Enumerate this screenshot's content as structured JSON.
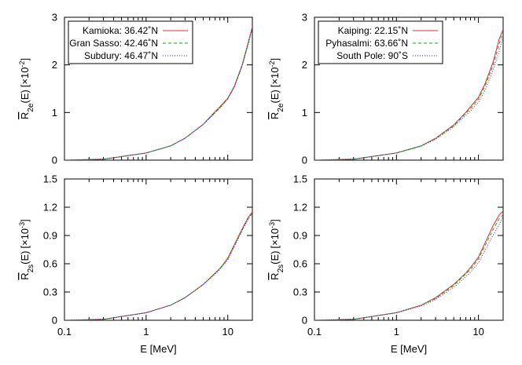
{
  "chart_data": [
    {
      "type": "line",
      "panel": "top-left",
      "ylabel": {
        "base": "R",
        "sub": "2e",
        "arg": "(E)",
        "scale": "[×10",
        "exp": "-2",
        "close": "]"
      },
      "xlabel": "",
      "xscale": "log",
      "xlim": [
        0.1,
        20
      ],
      "ylim": [
        0,
        3
      ],
      "xtick_values": [
        0.1,
        1,
        10
      ],
      "xtick_labels": [
        "",
        "",
        ""
      ],
      "ytick_values": [
        0,
        1,
        2,
        3
      ],
      "ytick_labels": [
        "0",
        "1",
        "2",
        "3"
      ],
      "legend_position": "top-left",
      "series": [
        {
          "name": "Kamioka: 36.42˚N",
          "color": "#e8282a",
          "dash": "solid",
          "x": [
            0.1,
            0.3,
            1,
            2,
            3,
            5,
            7,
            8,
            10,
            12,
            15,
            18,
            20
          ],
          "y": [
            0.0,
            0.02,
            0.15,
            0.3,
            0.46,
            0.75,
            1.02,
            1.12,
            1.3,
            1.55,
            2.0,
            2.5,
            2.8
          ]
        },
        {
          "name": "Gran Sasso: 42.46˚N",
          "color": "#17a017",
          "dash": "4,3",
          "x": [
            0.1,
            0.3,
            1,
            2,
            3,
            5,
            7,
            8,
            10,
            12,
            15,
            18,
            20
          ],
          "y": [
            0.0,
            0.02,
            0.15,
            0.3,
            0.46,
            0.75,
            1.0,
            1.1,
            1.29,
            1.54,
            1.98,
            2.48,
            2.78
          ]
        },
        {
          "name": "Subdury: 46.47˚N",
          "color": "#2a2ad8",
          "dash": "1,2",
          "x": [
            0.1,
            0.3,
            1,
            2,
            3,
            5,
            7,
            8,
            10,
            12,
            15,
            18,
            20
          ],
          "y": [
            0.0,
            0.02,
            0.15,
            0.3,
            0.46,
            0.75,
            0.99,
            1.09,
            1.28,
            1.53,
            1.97,
            2.46,
            2.77
          ]
        }
      ]
    },
    {
      "type": "line",
      "panel": "top-right",
      "ylabel": {
        "base": "R",
        "sub": "2e",
        "arg": "(E)",
        "scale": "[×10",
        "exp": "-2",
        "close": "]"
      },
      "xlabel": "",
      "xscale": "log",
      "xlim": [
        0.1,
        20
      ],
      "ylim": [
        0,
        3
      ],
      "xtick_values": [
        0.1,
        1,
        10
      ],
      "xtick_labels": [
        "",
        "",
        ""
      ],
      "ytick_values": [
        0,
        1,
        2,
        3
      ],
      "ytick_labels": [
        "0",
        "1",
        "2",
        "3"
      ],
      "legend_position": "top-left",
      "series": [
        {
          "name": "Kaiping: 22.15˚N",
          "color": "#e8282a",
          "dash": "solid",
          "x": [
            0.1,
            0.3,
            1,
            2,
            3,
            5,
            7,
            8,
            10,
            12,
            15,
            18,
            20
          ],
          "y": [
            0.0,
            0.02,
            0.15,
            0.3,
            0.46,
            0.74,
            1.0,
            1.12,
            1.32,
            1.6,
            2.05,
            2.55,
            2.75
          ]
        },
        {
          "name": "Pyhasalmi: 63.66˚N",
          "color": "#17a017",
          "dash": "4,3",
          "x": [
            0.1,
            0.3,
            1,
            2,
            3,
            5,
            7,
            8,
            10,
            12,
            15,
            18,
            20
          ],
          "y": [
            0.0,
            0.02,
            0.15,
            0.3,
            0.45,
            0.72,
            0.98,
            1.08,
            1.28,
            1.55,
            1.98,
            2.45,
            2.7
          ]
        },
        {
          "name": "South Pole:     90˚S",
          "color": "#2a2ad8",
          "dash": "1,2",
          "x": [
            0.1,
            0.3,
            1,
            2,
            3,
            5,
            7,
            8,
            10,
            12,
            15,
            18,
            20
          ],
          "y": [
            0.0,
            0.02,
            0.15,
            0.29,
            0.44,
            0.7,
            0.94,
            1.03,
            1.22,
            1.46,
            1.88,
            2.3,
            2.6
          ]
        }
      ]
    },
    {
      "type": "line",
      "panel": "bottom-left",
      "ylabel": {
        "base": "R",
        "sub": "2s",
        "arg": "(E)",
        "scale": "[×10",
        "exp": "-3",
        "close": "]"
      },
      "xlabel": "E [MeV]",
      "xscale": "log",
      "xlim": [
        0.1,
        20
      ],
      "ylim": [
        0,
        1.5
      ],
      "xtick_values": [
        0.1,
        1,
        10
      ],
      "xtick_labels": [
        "0.1",
        "1",
        "10"
      ],
      "ytick_values": [
        0,
        0.3,
        0.6,
        0.9,
        1.2,
        1.5
      ],
      "ytick_labels": [
        "0",
        "0.3",
        "0.6",
        "0.9",
        "1.2",
        "1.5"
      ],
      "series": [
        {
          "name": "",
          "color": "#e8282a",
          "dash": "solid",
          "x": [
            0.1,
            0.3,
            1,
            2,
            3,
            5,
            7,
            8,
            10,
            12,
            15,
            18,
            20
          ],
          "y": [
            0.0,
            0.01,
            0.08,
            0.16,
            0.24,
            0.38,
            0.5,
            0.55,
            0.66,
            0.8,
            0.97,
            1.1,
            1.15
          ]
        },
        {
          "name": "",
          "color": "#17a017",
          "dash": "4,3",
          "x": [
            0.1,
            0.3,
            1,
            2,
            3,
            5,
            7,
            8,
            10,
            12,
            15,
            18,
            20
          ],
          "y": [
            0.0,
            0.01,
            0.08,
            0.16,
            0.24,
            0.38,
            0.5,
            0.55,
            0.65,
            0.79,
            0.96,
            1.09,
            1.14
          ]
        },
        {
          "name": "",
          "color": "#2a2ad8",
          "dash": "1,2",
          "x": [
            0.1,
            0.3,
            1,
            2,
            3,
            5,
            7,
            8,
            10,
            12,
            15,
            18,
            20
          ],
          "y": [
            0.0,
            0.01,
            0.08,
            0.16,
            0.24,
            0.38,
            0.49,
            0.54,
            0.64,
            0.78,
            0.95,
            1.08,
            1.13
          ]
        }
      ]
    },
    {
      "type": "line",
      "panel": "bottom-right",
      "ylabel": {
        "base": "R",
        "sub": "2s",
        "arg": "(E)",
        "scale": "[×10",
        "exp": "-3",
        "close": "]"
      },
      "xlabel": "E [MeV]",
      "xscale": "log",
      "xlim": [
        0.1,
        20
      ],
      "ylim": [
        0,
        1.5
      ],
      "xtick_values": [
        0.1,
        1,
        10
      ],
      "xtick_labels": [
        "0.1",
        "1",
        "10"
      ],
      "ytick_values": [
        0,
        0.3,
        0.6,
        0.9,
        1.2,
        1.5
      ],
      "ytick_labels": [
        "0",
        "0.3",
        "0.6",
        "0.9",
        "1.2",
        "1.5"
      ],
      "series": [
        {
          "name": "",
          "color": "#e8282a",
          "dash": "solid",
          "x": [
            0.1,
            0.3,
            1,
            2,
            3,
            5,
            7,
            8,
            10,
            12,
            15,
            18,
            20
          ],
          "y": [
            0.0,
            0.01,
            0.08,
            0.16,
            0.24,
            0.38,
            0.5,
            0.56,
            0.67,
            0.82,
            1.0,
            1.12,
            1.16
          ]
        },
        {
          "name": "",
          "color": "#17a017",
          "dash": "4,3",
          "x": [
            0.1,
            0.3,
            1,
            2,
            3,
            5,
            7,
            8,
            10,
            12,
            15,
            18,
            20
          ],
          "y": [
            0.0,
            0.01,
            0.08,
            0.16,
            0.23,
            0.37,
            0.49,
            0.54,
            0.65,
            0.79,
            0.96,
            1.08,
            1.12
          ]
        },
        {
          "name": "",
          "color": "#2a2ad8",
          "dash": "1,2",
          "x": [
            0.1,
            0.3,
            1,
            2,
            3,
            5,
            7,
            8,
            10,
            12,
            15,
            18,
            20
          ],
          "y": [
            0.0,
            0.01,
            0.08,
            0.15,
            0.22,
            0.35,
            0.46,
            0.51,
            0.61,
            0.74,
            0.9,
            1.02,
            1.1
          ]
        }
      ]
    }
  ]
}
